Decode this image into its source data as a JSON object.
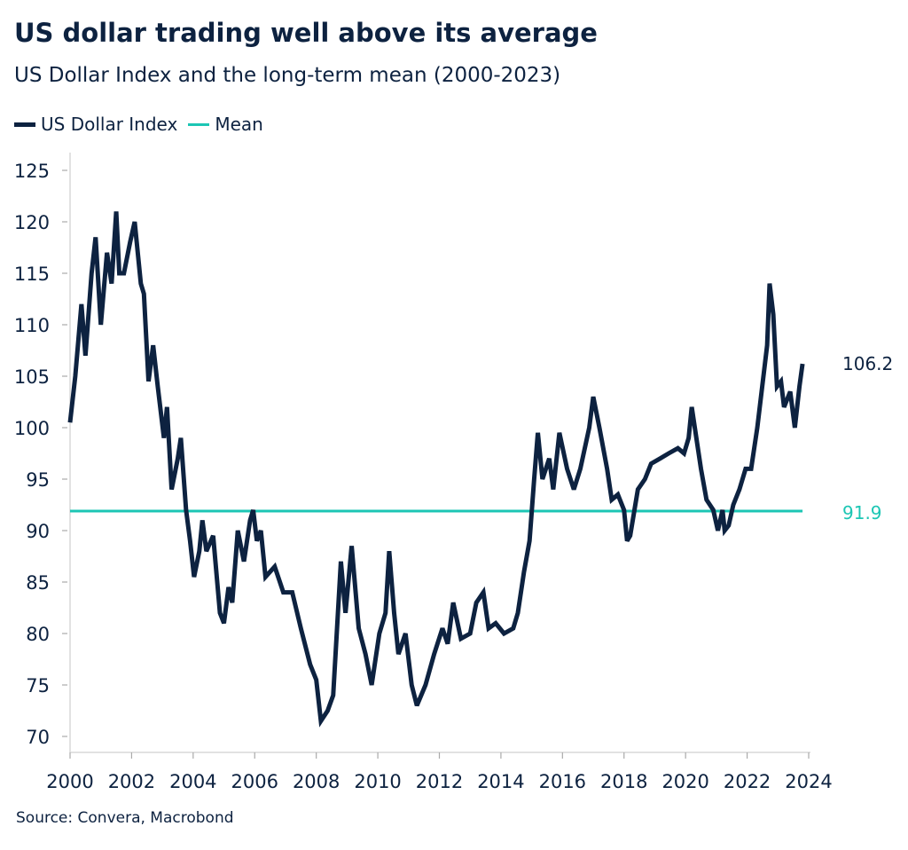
{
  "chart_data": {
    "type": "line",
    "title": "US dollar trading well above its average",
    "subtitle": "US Dollar Index and the long-term mean (2000-2023)",
    "xlabel": "",
    "ylabel": "",
    "xlim": [
      2000,
      2024
    ],
    "ylim": [
      70,
      125
    ],
    "xticks": [
      "2000",
      "2002",
      "2004",
      "2006",
      "2008",
      "2010",
      "2012",
      "2014",
      "2016",
      "2018",
      "2020",
      "2022",
      "2024"
    ],
    "yticks": [
      "70",
      "75",
      "80",
      "85",
      "90",
      "95",
      "100",
      "105",
      "110",
      "115",
      "120",
      "125"
    ],
    "grid": false,
    "legend_position": "top-left",
    "series": [
      {
        "name": "US Dollar Index",
        "color": "#0d2240",
        "end_label": "106.2",
        "x": [
          2000.0,
          2000.17,
          2000.37,
          2000.5,
          2000.7,
          2000.83,
          2001.0,
          2001.2,
          2001.35,
          2001.5,
          2001.6,
          2001.75,
          2001.95,
          2002.1,
          2002.3,
          2002.4,
          2002.55,
          2002.7,
          2002.85,
          2003.05,
          2003.15,
          2003.3,
          2003.5,
          2003.6,
          2003.77,
          2003.9,
          2004.03,
          2004.2,
          2004.3,
          2004.43,
          2004.65,
          2004.87,
          2005.0,
          2005.15,
          2005.27,
          2005.45,
          2005.65,
          2005.85,
          2005.95,
          2006.07,
          2006.2,
          2006.35,
          2006.65,
          2006.93,
          2007.22,
          2007.5,
          2007.8,
          2008.0,
          2008.15,
          2008.37,
          2008.55,
          2008.8,
          2008.95,
          2009.15,
          2009.38,
          2009.6,
          2009.8,
          2010.05,
          2010.25,
          2010.37,
          2010.53,
          2010.67,
          2010.9,
          2011.1,
          2011.27,
          2011.55,
          2011.83,
          2012.1,
          2012.27,
          2012.45,
          2012.7,
          2013.0,
          2013.2,
          2013.43,
          2013.6,
          2013.83,
          2014.1,
          2014.4,
          2014.55,
          2014.75,
          2014.93,
          2015.08,
          2015.2,
          2015.35,
          2015.57,
          2015.7,
          2015.9,
          2016.15,
          2016.37,
          2016.58,
          2016.87,
          2017.0,
          2017.2,
          2017.45,
          2017.6,
          2017.8,
          2018.0,
          2018.1,
          2018.2,
          2018.45,
          2018.68,
          2018.88,
          2019.17,
          2019.45,
          2019.75,
          2019.95,
          2020.1,
          2020.2,
          2020.35,
          2020.5,
          2020.68,
          2020.9,
          2021.05,
          2021.2,
          2021.27,
          2021.4,
          2021.55,
          2021.75,
          2021.95,
          2022.13,
          2022.33,
          2022.47,
          2022.65,
          2022.73,
          2022.85,
          2022.97,
          2023.1,
          2023.2,
          2023.4,
          2023.55,
          2023.7,
          2023.8
        ],
        "y": [
          100.5,
          105,
          112,
          107,
          115,
          118.5,
          110,
          117,
          114,
          121,
          115,
          115,
          118,
          120,
          114,
          113,
          104.5,
          108,
          104,
          99,
          102,
          94,
          97,
          99,
          92,
          89,
          85.5,
          88,
          91,
          88,
          89.5,
          82,
          81,
          84.5,
          83,
          90,
          87,
          91,
          92,
          89,
          90,
          85.5,
          86.5,
          84,
          84,
          80.5,
          77,
          75.5,
          71.5,
          72.5,
          74,
          87,
          82,
          88.5,
          80.5,
          78,
          75,
          80,
          82,
          88,
          82,
          78,
          80,
          75,
          73,
          75,
          78,
          80.5,
          79,
          83,
          79.5,
          80,
          83,
          84,
          80.5,
          81,
          80,
          80.5,
          82,
          86,
          89,
          95,
          99.5,
          95,
          97,
          94,
          99.5,
          96,
          94,
          96,
          100,
          103,
          100,
          96,
          93,
          93.5,
          92,
          89,
          89.5,
          94,
          95,
          96.5,
          97,
          97.5,
          98,
          97.5,
          99,
          102,
          99,
          96,
          93,
          92,
          90,
          92,
          90,
          90.5,
          92.5,
          94,
          96,
          96,
          100,
          103.5,
          108,
          114,
          111,
          104,
          104.5,
          102,
          103.5,
          100,
          104,
          106.2
        ]
      },
      {
        "name": "Mean",
        "color": "#1cc6b4",
        "value": 91.9,
        "end_label": "91.9",
        "x": [
          2000,
          2023.8
        ]
      }
    ]
  },
  "source": "Source: Convera, Macrobond"
}
